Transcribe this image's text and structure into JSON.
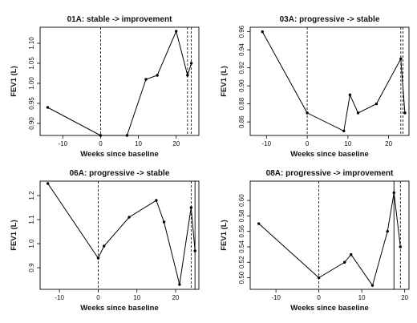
{
  "chart_data": [
    {
      "type": "line",
      "title": "01A: stable -> improvement",
      "xlabel": "Weeks since baseline",
      "ylabel": "FEV1 (L)",
      "xlim": [
        -16,
        26
      ],
      "ylim": [
        0.87,
        1.14
      ],
      "xticks": [
        -10,
        0,
        10,
        20
      ],
      "yticks": [
        0.9,
        0.95,
        1.0,
        1.05,
        1.1
      ],
      "ytick_labels": [
        "0.90",
        "0.95",
        "1.00",
        "1.05",
        "1.10"
      ],
      "x": [
        -14,
        0,
        7,
        12,
        15,
        20,
        23,
        24
      ],
      "y": [
        0.94,
        0.87,
        0.87,
        1.01,
        1.02,
        1.13,
        1.02,
        1.05
      ],
      "vlines_dashed": [
        0,
        23,
        24
      ]
    },
    {
      "type": "line",
      "title": "03A: progressive -> stable",
      "xlabel": "Weeks since baseline",
      "ylabel": "FEV1 (L)",
      "xlim": [
        -14,
        25
      ],
      "ylim": [
        0.845,
        0.965
      ],
      "xticks": [
        -10,
        0,
        10,
        20
      ],
      "yticks": [
        0.86,
        0.88,
        0.9,
        0.92,
        0.94,
        0.96
      ],
      "ytick_labels": [
        "0.86",
        "0.88",
        "0.90",
        "0.92",
        "0.94",
        "0.96"
      ],
      "x": [
        -11,
        0,
        9,
        10.5,
        12.5,
        17,
        23,
        24
      ],
      "y": [
        0.96,
        0.87,
        0.85,
        0.89,
        0.87,
        0.88,
        0.93,
        0.87
      ],
      "vlines_dashed": [
        0,
        23,
        23.5
      ]
    },
    {
      "type": "line",
      "title": "06A: progressive -> stable",
      "xlabel": "Weeks since baseline",
      "ylabel": "FEV1 (L)",
      "xlim": [
        -15,
        26
      ],
      "ylim": [
        0.81,
        1.26
      ],
      "xticks": [
        -10,
        0,
        10,
        20
      ],
      "yticks": [
        0.9,
        1.0,
        1.1,
        1.2
      ],
      "ytick_labels": [
        "0.9",
        "1.0",
        "1.1",
        "1.2"
      ],
      "x": [
        -13,
        0,
        1.5,
        8,
        15,
        17,
        21,
        24,
        25
      ],
      "y": [
        1.25,
        0.94,
        0.99,
        1.11,
        1.18,
        1.09,
        0.83,
        1.15,
        0.97
      ],
      "vlines_dashed": [
        0,
        24
      ],
      "vlines_solid": [
        25
      ]
    },
    {
      "type": "line",
      "title": "08A: progressive -> improvement",
      "xlabel": "Weeks since baseline",
      "ylabel": "FEV1 (L)",
      "xlim": [
        -16,
        21
      ],
      "ylim": [
        0.485,
        0.625
      ],
      "xticks": [
        -10,
        0,
        10,
        20
      ],
      "yticks": [
        0.5,
        0.52,
        0.54,
        0.56,
        0.58,
        0.6
      ],
      "ytick_labels": [
        "0.50",
        "0.52",
        "0.54",
        "0.56",
        "0.58",
        "0.60"
      ],
      "x": [
        -14,
        0,
        6,
        7.5,
        12.5,
        16,
        17.5,
        19
      ],
      "y": [
        0.57,
        0.5,
        0.52,
        0.53,
        0.49,
        0.56,
        0.61,
        0.54
      ],
      "vlines_dashed": [
        0,
        19
      ],
      "vlines_solid": [
        17.5
      ]
    }
  ]
}
